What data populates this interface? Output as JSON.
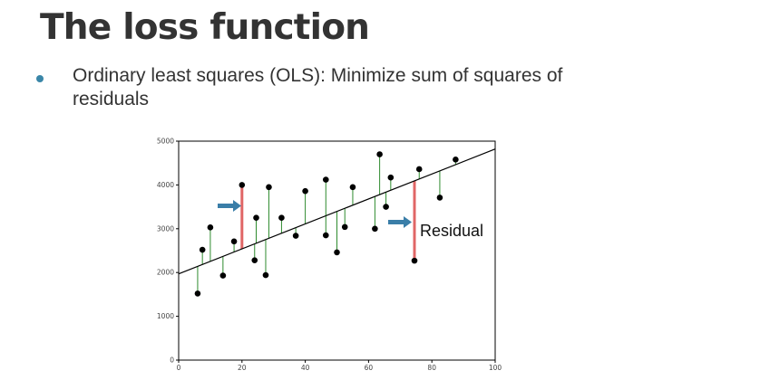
{
  "slide": {
    "title": "The loss function",
    "bullet": "Ordinary least squares (OLS): Minimize sum of squares of residuals"
  },
  "colors": {
    "title": "#333333",
    "bullet_dot": "#3a86a8",
    "residual_line": "#2e8b2e",
    "highlight_residual": "#e06666",
    "arrow": "#3a7ea8",
    "point": "#000000",
    "fit_line": "#000000"
  },
  "icons": {
    "arrow": "right-arrow-icon",
    "bullet": "bullet-dot-icon"
  },
  "chart_data": {
    "type": "scatter",
    "title": "",
    "xlabel": "",
    "ylabel": "",
    "xlim": [
      0,
      100
    ],
    "ylim": [
      0,
      5000
    ],
    "xticks": [
      0,
      20,
      40,
      60,
      80,
      100
    ],
    "yticks": [
      0,
      1000,
      2000,
      3000,
      4000,
      5000
    ],
    "grid": false,
    "fit_line": {
      "intercept": 1970,
      "slope": 28.5
    },
    "points": [
      {
        "x": 6,
        "y": 1520
      },
      {
        "x": 7.5,
        "y": 2520
      },
      {
        "x": 10,
        "y": 3030
      },
      {
        "x": 14,
        "y": 1930
      },
      {
        "x": 17.5,
        "y": 2710
      },
      {
        "x": 20,
        "y": 4000,
        "highlight": true
      },
      {
        "x": 24,
        "y": 2280
      },
      {
        "x": 24.5,
        "y": 3250
      },
      {
        "x": 27.5,
        "y": 1940
      },
      {
        "x": 28.5,
        "y": 3950
      },
      {
        "x": 32.5,
        "y": 3250
      },
      {
        "x": 37,
        "y": 2840
      },
      {
        "x": 40,
        "y": 3860
      },
      {
        "x": 46.5,
        "y": 2850
      },
      {
        "x": 46.5,
        "y": 4120
      },
      {
        "x": 50,
        "y": 2460
      },
      {
        "x": 52.5,
        "y": 3040
      },
      {
        "x": 55,
        "y": 3950
      },
      {
        "x": 62,
        "y": 3000
      },
      {
        "x": 63.5,
        "y": 4700
      },
      {
        "x": 65.5,
        "y": 3500
      },
      {
        "x": 67,
        "y": 4170
      },
      {
        "x": 74.5,
        "y": 2270,
        "highlight": true
      },
      {
        "x": 76,
        "y": 4360
      },
      {
        "x": 82.5,
        "y": 3710
      },
      {
        "x": 87.5,
        "y": 4580
      }
    ],
    "annotations": [
      {
        "text": "Residual"
      }
    ]
  }
}
